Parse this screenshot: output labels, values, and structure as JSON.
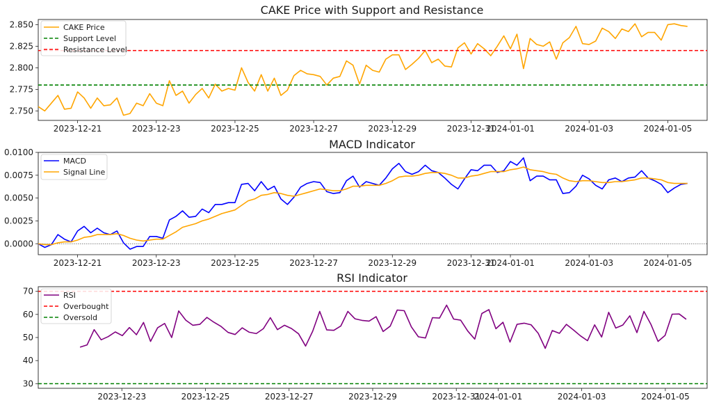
{
  "chart_data": [
    {
      "type": "line",
      "title": "CAKE Price with Support and Resistance",
      "legend": {
        "placement": "top-left",
        "entries": [
          "CAKE Price",
          "Support Level",
          "Resistance Level"
        ]
      },
      "xlim": [
        "2023-12-20",
        "2024-01-06"
      ],
      "xticks": [
        "2023-12-21",
        "2023-12-23",
        "2023-12-25",
        "2023-12-27",
        "2023-12-29",
        "2023-12-31",
        "2024-01-01",
        "2024-01-03",
        "2024-01-05"
      ],
      "ylim": [
        2.739,
        2.856
      ],
      "yticks": [
        "2.750",
        "2.775",
        "2.800",
        "2.825",
        "2.850"
      ],
      "x_range": [
        "2023-12-20T00:00",
        "2024-01-05T12:00"
      ],
      "series": [
        {
          "name": "CAKE Price",
          "color": "#FFA500",
          "values": [
            2.755,
            2.75,
            2.759,
            2.768,
            2.752,
            2.753,
            2.772,
            2.765,
            2.753,
            2.765,
            2.756,
            2.757,
            2.765,
            2.745,
            2.747,
            2.759,
            2.756,
            2.77,
            2.759,
            2.756,
            2.785,
            2.768,
            2.773,
            2.759,
            2.769,
            2.776,
            2.765,
            2.781,
            2.773,
            2.776,
            2.774,
            2.8,
            2.783,
            2.773,
            2.792,
            2.773,
            2.788,
            2.768,
            2.774,
            2.791,
            2.797,
            2.793,
            2.792,
            2.79,
            2.78,
            2.788,
            2.79,
            2.808,
            2.803,
            2.781,
            2.803,
            2.797,
            2.795,
            2.81,
            2.815,
            2.815,
            2.798,
            2.804,
            2.811,
            2.82,
            2.806,
            2.81,
            2.802,
            2.801,
            2.823,
            2.829,
            2.816,
            2.828,
            2.822,
            2.814,
            2.825,
            2.837,
            2.822,
            2.839,
            2.799,
            2.834,
            2.827,
            2.825,
            2.83,
            2.81,
            2.829,
            2.835,
            2.848,
            2.828,
            2.827,
            2.831,
            2.846,
            2.842,
            2.834,
            2.845,
            2.842,
            2.851,
            2.836,
            2.841,
            2.841,
            2.832,
            2.85,
            2.851,
            2.849,
            2.848
          ]
        },
        {
          "name": "Support Level",
          "color": "#008000",
          "constant": 2.78
        },
        {
          "name": "Resistance Level",
          "color": "#FF0000",
          "constant": 2.82
        }
      ]
    },
    {
      "type": "line",
      "title": "MACD Indicator",
      "legend": {
        "placement": "top-left",
        "entries": [
          "MACD",
          "Signal Line"
        ]
      },
      "xlim": [
        "2023-12-20",
        "2024-01-06"
      ],
      "xticks": [
        "2023-12-21",
        "2023-12-23",
        "2023-12-25",
        "2023-12-27",
        "2023-12-29",
        "2023-12-31",
        "2024-01-01",
        "2024-01-03",
        "2024-01-05"
      ],
      "ylim": [
        -0.0012,
        0.01
      ],
      "yticks": [
        "0.0000",
        "0.0025",
        "0.0050",
        "0.0075",
        "0.0100"
      ],
      "zero_line": true,
      "x_range": [
        "2023-12-20T00:00",
        "2024-01-05T12:00"
      ],
      "series": [
        {
          "name": "MACD",
          "color": "#0000FF",
          "values": [
            0.0,
            -0.0004,
            -0.0001,
            0.001,
            0.0005,
            0.0002,
            0.0014,
            0.0019,
            0.0012,
            0.0017,
            0.0012,
            0.001,
            0.0014,
            0.0001,
            -0.0006,
            -0.0003,
            -0.0003,
            0.0008,
            0.0008,
            0.0006,
            0.0026,
            0.003,
            0.0036,
            0.0029,
            0.003,
            0.0038,
            0.0034,
            0.0043,
            0.0043,
            0.0045,
            0.0045,
            0.0065,
            0.0066,
            0.0058,
            0.0068,
            0.0059,
            0.0063,
            0.0049,
            0.0043,
            0.0051,
            0.0062,
            0.0066,
            0.0068,
            0.0067,
            0.0057,
            0.0055,
            0.0056,
            0.0069,
            0.0074,
            0.0062,
            0.0068,
            0.0066,
            0.0064,
            0.0072,
            0.0082,
            0.0088,
            0.0079,
            0.0076,
            0.0079,
            0.0086,
            0.008,
            0.0078,
            0.0072,
            0.0065,
            0.006,
            0.0071,
            0.0081,
            0.008,
            0.0086,
            0.0086,
            0.0078,
            0.008,
            0.009,
            0.0086,
            0.0094,
            0.0069,
            0.0074,
            0.0074,
            0.007,
            0.007,
            0.0055,
            0.0056,
            0.0063,
            0.0075,
            0.0071,
            0.0064,
            0.006,
            0.007,
            0.0072,
            0.0068,
            0.0072,
            0.0073,
            0.008,
            0.0072,
            0.0069,
            0.0065,
            0.0056,
            0.0061,
            0.0065,
            0.0066
          ]
        },
        {
          "name": "Signal Line",
          "color": "#FFA500",
          "values": [
            0.0,
            -0.0001,
            -0.0001,
            0.0001,
            0.0002,
            0.0002,
            0.0004,
            0.0007,
            0.0008,
            0.001,
            0.001,
            0.001,
            0.0011,
            0.0009,
            0.0006,
            0.0004,
            0.0003,
            0.0004,
            0.0005,
            0.0005,
            0.0009,
            0.0013,
            0.0018,
            0.002,
            0.0022,
            0.0025,
            0.0027,
            0.003,
            0.0033,
            0.0035,
            0.0037,
            0.0042,
            0.0047,
            0.0049,
            0.0053,
            0.0054,
            0.0056,
            0.0055,
            0.0053,
            0.0052,
            0.0054,
            0.0056,
            0.0058,
            0.006,
            0.0059,
            0.0058,
            0.0058,
            0.006,
            0.0063,
            0.0063,
            0.0064,
            0.0064,
            0.0064,
            0.0066,
            0.0069,
            0.0073,
            0.0074,
            0.0074,
            0.0075,
            0.0077,
            0.0078,
            0.0078,
            0.0077,
            0.0075,
            0.0072,
            0.0072,
            0.0074,
            0.0075,
            0.0077,
            0.0079,
            0.0079,
            0.0079,
            0.0081,
            0.0082,
            0.0084,
            0.0081,
            0.008,
            0.0079,
            0.0077,
            0.0076,
            0.0072,
            0.0069,
            0.0068,
            0.0069,
            0.0069,
            0.0068,
            0.0067,
            0.0067,
            0.0068,
            0.0068,
            0.0069,
            0.007,
            0.0072,
            0.0072,
            0.0071,
            0.007,
            0.0067,
            0.0066,
            0.0066,
            0.0066
          ]
        }
      ]
    },
    {
      "type": "line",
      "title": "RSI Indicator",
      "legend": {
        "placement": "top-left",
        "entries": [
          "RSI",
          "Overbought",
          "Oversold"
        ]
      },
      "xlim": [
        "2023-12-21",
        "2024-01-06"
      ],
      "xticks": [
        "2023-12-23",
        "2023-12-25",
        "2023-12-27",
        "2023-12-29",
        "2023-12-31",
        "2024-01-01",
        "2024-01-03",
        "2024-01-05"
      ],
      "ylim": [
        28,
        72
      ],
      "yticks": [
        "30",
        "40",
        "50",
        "60",
        "70"
      ],
      "x_range": [
        "2023-12-22T00:00",
        "2024-01-05T12:00"
      ],
      "series": [
        {
          "name": "RSI",
          "color": "#800080",
          "values": [
            45.8,
            46.8,
            53.4,
            49.0,
            50.4,
            52.4,
            50.8,
            54.3,
            51.2,
            56.5,
            48.3,
            54.2,
            56.1,
            50.0,
            61.5,
            57.5,
            55.3,
            55.7,
            58.7,
            56.6,
            54.8,
            52.2,
            51.3,
            54.2,
            52.3,
            51.7,
            53.8,
            58.6,
            53.4,
            55.3,
            53.9,
            51.6,
            46.3,
            52.7,
            61.3,
            53.3,
            53.1,
            55.0,
            61.3,
            58.1,
            57.4,
            57.1,
            59.0,
            52.6,
            54.9,
            61.9,
            61.6,
            54.6,
            50.3,
            49.8,
            58.6,
            58.4,
            64.0,
            58.0,
            57.5,
            52.8,
            49.3,
            60.4,
            62.1,
            53.8,
            56.6,
            48.0,
            55.7,
            56.2,
            55.5,
            51.8,
            45.3,
            53.0,
            51.8,
            55.7,
            53.3,
            50.7,
            48.6,
            55.5,
            50.2,
            60.9,
            54.1,
            55.4,
            59.4,
            52.1,
            61.3,
            55.6,
            48.3,
            50.9,
            60.1,
            60.2,
            57.9
          ]
        },
        {
          "name": "Overbought",
          "color": "#FF0000",
          "constant": 70
        },
        {
          "name": "Oversold",
          "color": "#008000",
          "constant": 30
        }
      ]
    }
  ]
}
